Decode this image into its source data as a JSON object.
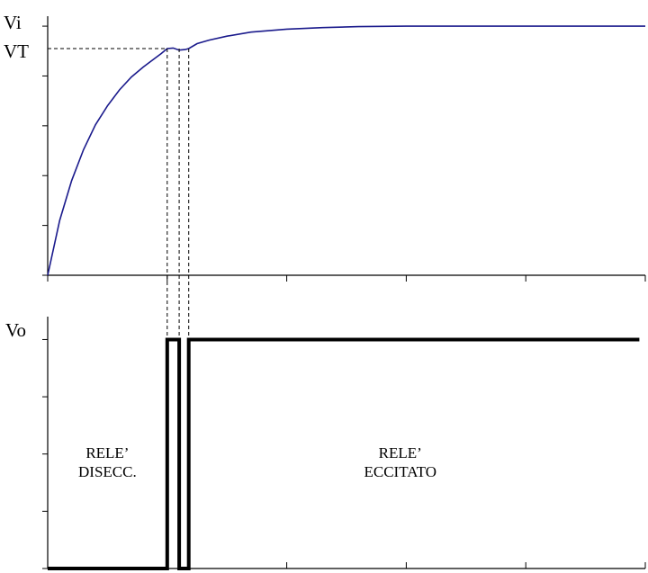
{
  "chart_data": [
    {
      "type": "line",
      "ylabel": "Vi",
      "threshold_label": "VT",
      "xlim": [
        0,
        5
      ],
      "ylim": [
        0,
        5.2
      ],
      "x_ticks": [
        0,
        1,
        2,
        3,
        4,
        5
      ],
      "y_ticks": [
        0,
        1,
        2,
        3,
        4,
        5
      ],
      "threshold_y": 4.55,
      "threshold_crossings_x": [
        1.0,
        1.1,
        1.18
      ],
      "grid": false,
      "series": [
        {
          "color": "#1a1a8c",
          "x": [
            0,
            0.1,
            0.2,
            0.3,
            0.4,
            0.5,
            0.6,
            0.7,
            0.8,
            0.9,
            0.95,
            1.0,
            1.05,
            1.1,
            1.15,
            1.18,
            1.25,
            1.35,
            1.5,
            1.7,
            2.0,
            2.3,
            2.6,
            3.0,
            3.5,
            4.0,
            4.5,
            5.0
          ],
          "y": [
            0,
            1.1,
            1.9,
            2.52,
            3.02,
            3.4,
            3.72,
            3.98,
            4.18,
            4.36,
            4.45,
            4.55,
            4.56,
            4.52,
            4.53,
            4.55,
            4.65,
            4.72,
            4.8,
            4.88,
            4.94,
            4.97,
            4.99,
            5.0,
            5.0,
            5.0,
            5.0,
            5.0
          ]
        }
      ]
    },
    {
      "type": "line",
      "ylabel": "Vo",
      "xlim": [
        0,
        5
      ],
      "ylim": [
        0,
        4.4
      ],
      "x_ticks": [
        0,
        1,
        2,
        3,
        4,
        5
      ],
      "y_ticks": [
        0,
        1,
        2,
        3,
        4
      ],
      "grid": false,
      "series": [
        {
          "color": "#000000",
          "x": [
            0,
            1.0,
            1.0,
            1.1,
            1.1,
            1.18,
            1.18,
            4.95
          ],
          "y": [
            0,
            0,
            4,
            4,
            0,
            0,
            4,
            4
          ]
        }
      ],
      "annotations": [
        {
          "text": [
            "RELE’",
            "DISECC."
          ],
          "x": 0.5,
          "y": 1.8
        },
        {
          "text": [
            "RELE’",
            "ECCITATO"
          ],
          "x": 2.95,
          "y": 1.8
        }
      ]
    }
  ]
}
